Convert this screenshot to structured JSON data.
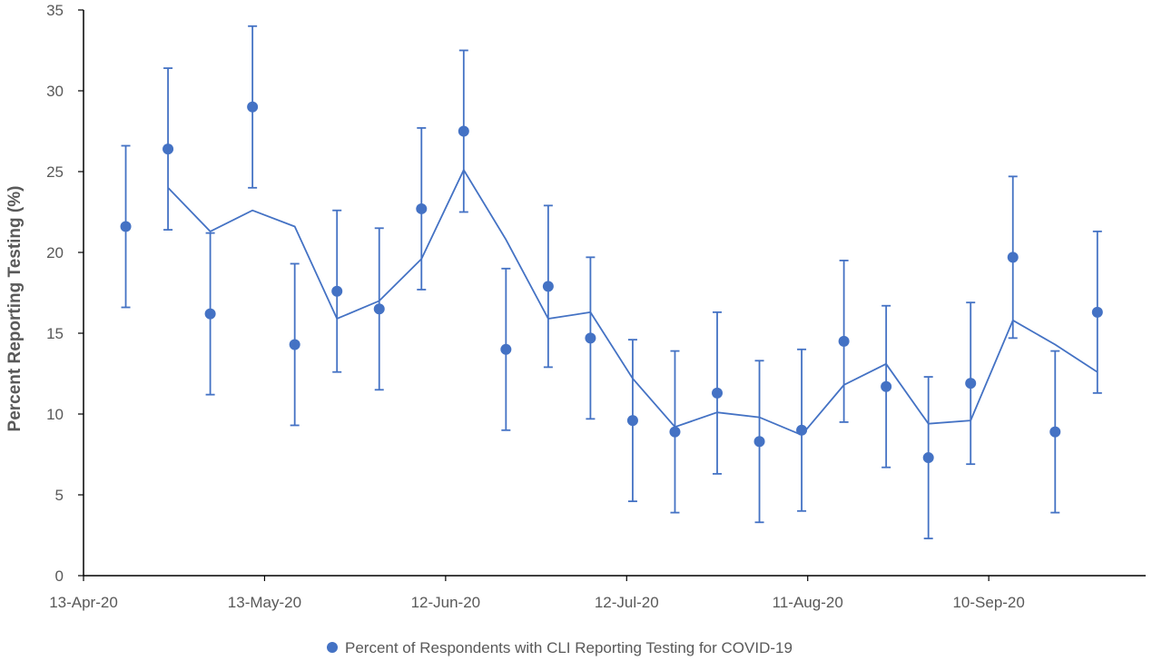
{
  "chart_data": {
    "type": "scatter",
    "ylabel": "Percent Reporting Testing (%)",
    "xlabel": "",
    "ylim": [
      0,
      35
    ],
    "yticks": [
      0,
      5,
      10,
      15,
      20,
      25,
      30,
      35
    ],
    "xlim": [
      "2020-04-13",
      "2020-10-06"
    ],
    "xticks": [
      {
        "date": "2020-04-13",
        "label": "13-Apr-20"
      },
      {
        "date": "2020-05-13",
        "label": "13-May-20"
      },
      {
        "date": "2020-06-12",
        "label": "12-Jun-20"
      },
      {
        "date": "2020-07-12",
        "label": "12-Jul-20"
      },
      {
        "date": "2020-08-11",
        "label": "11-Aug-20"
      },
      {
        "date": "2020-09-10",
        "label": "10-Sep-20"
      }
    ],
    "legend": {
      "position": "bottom"
    },
    "colors": {
      "series": "#4472C4",
      "axis": "#000000",
      "text": "#595959"
    },
    "series": [
      {
        "name": "Percent of Respondents with CLI Reporting Testing for COVID-19",
        "kind": "points_with_error_bars",
        "points": [
          {
            "x": "2020-04-20",
            "y": 21.6,
            "low": 16.6,
            "high": 26.6
          },
          {
            "x": "2020-04-27",
            "y": 26.4,
            "low": 21.4,
            "high": 31.4
          },
          {
            "x": "2020-05-04",
            "y": 16.2,
            "low": 11.2,
            "high": 21.2
          },
          {
            "x": "2020-05-11",
            "y": 29.0,
            "low": 24.0,
            "high": 34.0
          },
          {
            "x": "2020-05-18",
            "y": 14.3,
            "low": 9.3,
            "high": 19.3
          },
          {
            "x": "2020-05-25",
            "y": 17.6,
            "low": 12.6,
            "high": 22.6
          },
          {
            "x": "2020-06-01",
            "y": 16.5,
            "low": 11.5,
            "high": 21.5
          },
          {
            "x": "2020-06-08",
            "y": 22.7,
            "low": 17.7,
            "high": 27.7
          },
          {
            "x": "2020-06-15",
            "y": 27.5,
            "low": 22.5,
            "high": 32.5
          },
          {
            "x": "2020-06-22",
            "y": 14.0,
            "low": 9.0,
            "high": 19.0
          },
          {
            "x": "2020-06-29",
            "y": 17.9,
            "low": 12.9,
            "high": 22.9
          },
          {
            "x": "2020-07-06",
            "y": 14.7,
            "low": 9.7,
            "high": 19.7
          },
          {
            "x": "2020-07-13",
            "y": 9.6,
            "low": 4.6,
            "high": 14.6
          },
          {
            "x": "2020-07-20",
            "y": 8.9,
            "low": 3.9,
            "high": 13.9
          },
          {
            "x": "2020-07-27",
            "y": 11.3,
            "low": 6.3,
            "high": 16.3
          },
          {
            "x": "2020-08-03",
            "y": 8.3,
            "low": 3.3,
            "high": 13.3
          },
          {
            "x": "2020-08-10",
            "y": 9.0,
            "low": 4.0,
            "high": 14.0
          },
          {
            "x": "2020-08-17",
            "y": 14.5,
            "low": 9.5,
            "high": 19.5
          },
          {
            "x": "2020-08-24",
            "y": 11.7,
            "low": 6.7,
            "high": 16.7
          },
          {
            "x": "2020-08-31",
            "y": 7.3,
            "low": 2.3,
            "high": 12.3
          },
          {
            "x": "2020-09-07",
            "y": 11.9,
            "low": 6.9,
            "high": 16.9
          },
          {
            "x": "2020-09-14",
            "y": 19.7,
            "low": 14.7,
            "high": 24.7
          },
          {
            "x": "2020-09-21",
            "y": 8.9,
            "low": 3.9,
            "high": 13.9
          },
          {
            "x": "2020-09-28",
            "y": 16.3,
            "low": 11.3,
            "high": 21.3
          }
        ]
      },
      {
        "kind": "trend_line",
        "points": [
          {
            "x": "2020-04-27",
            "y": 24.0
          },
          {
            "x": "2020-05-04",
            "y": 21.3
          },
          {
            "x": "2020-05-11",
            "y": 22.6
          },
          {
            "x": "2020-05-18",
            "y": 21.6
          },
          {
            "x": "2020-05-25",
            "y": 15.9
          },
          {
            "x": "2020-06-01",
            "y": 17.0
          },
          {
            "x": "2020-06-08",
            "y": 19.6
          },
          {
            "x": "2020-06-15",
            "y": 25.1
          },
          {
            "x": "2020-06-22",
            "y": 20.8
          },
          {
            "x": "2020-06-29",
            "y": 15.9
          },
          {
            "x": "2020-07-06",
            "y": 16.3
          },
          {
            "x": "2020-07-13",
            "y": 12.2
          },
          {
            "x": "2020-07-20",
            "y": 9.2
          },
          {
            "x": "2020-07-27",
            "y": 10.1
          },
          {
            "x": "2020-08-03",
            "y": 9.8
          },
          {
            "x": "2020-08-10",
            "y": 8.7
          },
          {
            "x": "2020-08-17",
            "y": 11.8
          },
          {
            "x": "2020-08-24",
            "y": 13.1
          },
          {
            "x": "2020-08-31",
            "y": 9.4
          },
          {
            "x": "2020-09-07",
            "y": 9.6
          },
          {
            "x": "2020-09-14",
            "y": 15.8
          },
          {
            "x": "2020-09-21",
            "y": 14.3
          },
          {
            "x": "2020-09-28",
            "y": 12.6
          }
        ]
      }
    ]
  }
}
